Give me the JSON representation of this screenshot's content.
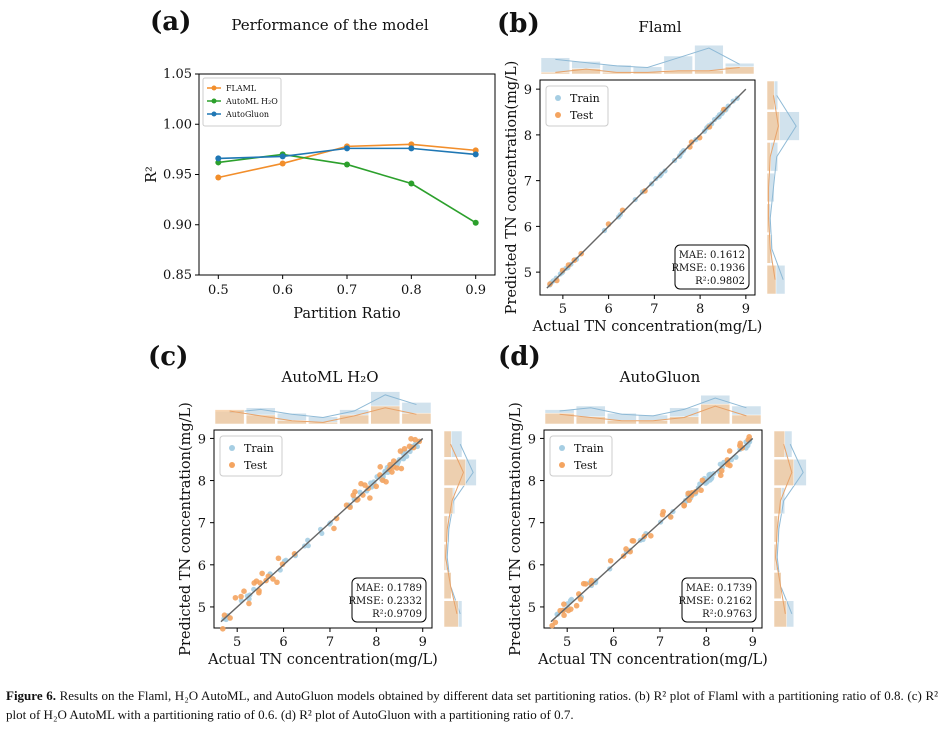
{
  "chart_data": [
    {
      "panel": "(a)",
      "type": "line",
      "title": "Performance of the model",
      "xlabel": "Partition Ratio",
      "ylabel": "R²",
      "xlim": [
        0.47,
        0.93
      ],
      "ylim": [
        0.85,
        1.05
      ],
      "xticks": [
        0.5,
        0.6,
        0.7,
        0.8,
        0.9
      ],
      "xtick_labels": [
        "0.5",
        "0.6",
        "0.7",
        "0.8",
        "0.9"
      ],
      "yticks": [
        0.85,
        0.9,
        0.95,
        1.0,
        1.05
      ],
      "ytick_labels": [
        "0.85",
        "0.90",
        "0.95",
        "1.00",
        "1.05"
      ],
      "legend_position": "top-left",
      "x": [
        0.5,
        0.6,
        0.7,
        0.8,
        0.9
      ],
      "series": [
        {
          "name": "FLAML",
          "color": "#f28e2b",
          "values": [
            0.947,
            0.961,
            0.978,
            0.98,
            0.974
          ]
        },
        {
          "name": "AutoML H₂O",
          "color": "#2ca02c",
          "values": [
            0.962,
            0.97,
            0.96,
            0.941,
            0.902
          ]
        },
        {
          "name": "AutoGluon",
          "color": "#1f77b4",
          "values": [
            0.966,
            0.968,
            0.976,
            0.976,
            0.97
          ]
        }
      ]
    },
    {
      "panel": "(b)",
      "type": "scatter",
      "title": "Flaml",
      "xlabel": "Actual TN concentration(mg/L)",
      "ylabel": "Predicted TN concentration(mg/L)",
      "xlim": [
        4.5,
        9.2
      ],
      "ylim": [
        4.5,
        9.2
      ],
      "ticks": [
        5,
        6,
        7,
        8,
        9
      ],
      "tick_labels": [
        "5",
        "6",
        "7",
        "8",
        "9"
      ],
      "legend": [
        "Train",
        "Test"
      ],
      "stats": {
        "mae": "MAE: 0.1612",
        "rmse": "RMSE: 0.1936",
        "r2": "R²:0.9802"
      },
      "noise_train": 0.025,
      "noise_test": 0.06,
      "hist_top": [
        {
          "name": "Train",
          "values": [
            0.45,
            0.35,
            0.25,
            0.2,
            0.5,
            0.8,
            0.3
          ]
        },
        {
          "name": "Test",
          "values": [
            0.05,
            0.15,
            0.05,
            0.05,
            0.1,
            0.1,
            0.2
          ]
        }
      ],
      "hist_right": [
        {
          "name": "Train",
          "values": [
            0.5,
            0.15,
            0.1,
            0.2,
            0.3,
            0.9,
            0.3
          ]
        },
        {
          "name": "Test",
          "values": [
            0.25,
            0.1,
            0.05,
            0.05,
            0.1,
            0.35,
            0.2
          ]
        }
      ]
    },
    {
      "panel": "(c)",
      "type": "scatter",
      "title": "AutoML H₂O",
      "xlabel": "Actual TN concentration(mg/L)",
      "ylabel": "Predicted TN concentration(mg/L)",
      "xlim": [
        4.5,
        9.2
      ],
      "ylim": [
        4.5,
        9.2
      ],
      "ticks": [
        5,
        6,
        7,
        8,
        9
      ],
      "tick_labels": [
        "5",
        "6",
        "7",
        "8",
        "9"
      ],
      "legend": [
        "Train",
        "Test"
      ],
      "stats": {
        "mae": "MAE: 0.1789",
        "rmse": "RMSE: 0.2332",
        "r2": "R²:0.9709"
      },
      "noise_train": 0.08,
      "noise_test": 0.28,
      "hist_top": [
        {
          "name": "Train",
          "values": [
            0.35,
            0.45,
            0.3,
            0.2,
            0.4,
            0.9,
            0.6
          ]
        },
        {
          "name": "Test",
          "values": [
            0.4,
            0.25,
            0.1,
            0.05,
            0.25,
            0.5,
            0.3
          ]
        }
      ],
      "hist_right": [
        {
          "name": "Train",
          "values": [
            0.5,
            0.2,
            0.1,
            0.15,
            0.3,
            0.9,
            0.5
          ]
        },
        {
          "name": "Test",
          "values": [
            0.4,
            0.2,
            0.05,
            0.1,
            0.25,
            0.6,
            0.2
          ]
        }
      ]
    },
    {
      "panel": "(d)",
      "type": "scatter",
      "title": "AutoGluon",
      "xlabel": "Actual TN concentration(mg/L)",
      "ylabel": "Predicted TN concentration(mg/L)",
      "xlim": [
        4.5,
        9.2
      ],
      "ylim": [
        4.5,
        9.2
      ],
      "ticks": [
        5,
        6,
        7,
        8,
        9
      ],
      "tick_labels": [
        "5",
        "6",
        "7",
        "8",
        "9"
      ],
      "legend": [
        "Train",
        "Test"
      ],
      "stats": {
        "mae": "MAE: 0.1739",
        "rmse": "RMSE: 0.2162",
        "r2": "R²:0.9763"
      },
      "noise_train": 0.09,
      "noise_test": 0.2,
      "hist_top": [
        {
          "name": "Train",
          "values": [
            0.4,
            0.5,
            0.3,
            0.25,
            0.45,
            0.8,
            0.5
          ]
        },
        {
          "name": "Test",
          "values": [
            0.3,
            0.2,
            0.1,
            0.1,
            0.2,
            0.55,
            0.25
          ]
        }
      ],
      "hist_right": [
        {
          "name": "Train",
          "values": [
            0.55,
            0.2,
            0.1,
            0.15,
            0.3,
            0.9,
            0.5
          ]
        },
        {
          "name": "Test",
          "values": [
            0.35,
            0.2,
            0.05,
            0.1,
            0.2,
            0.55,
            0.3
          ]
        }
      ]
    }
  ],
  "colors": {
    "train": "#a6cee3",
    "test": "#f4a460",
    "fit_line": "#666666",
    "hist_train": "#c6dbe8",
    "hist_test": "#f6c89a"
  },
  "caption": {
    "label": "Figure 6.",
    "text": "Results on the Flaml, H₂O AutoML, and AutoGluon models obtained by different data set partitioning ratios. (b) R² plot of Flaml with a partitioning ratio of 0.8. (c) R² plot of H₂O AutoML with a partitioning ratio of 0.6. (d) R² plot of AutoGluon with a partitioning ratio of 0.7."
  }
}
